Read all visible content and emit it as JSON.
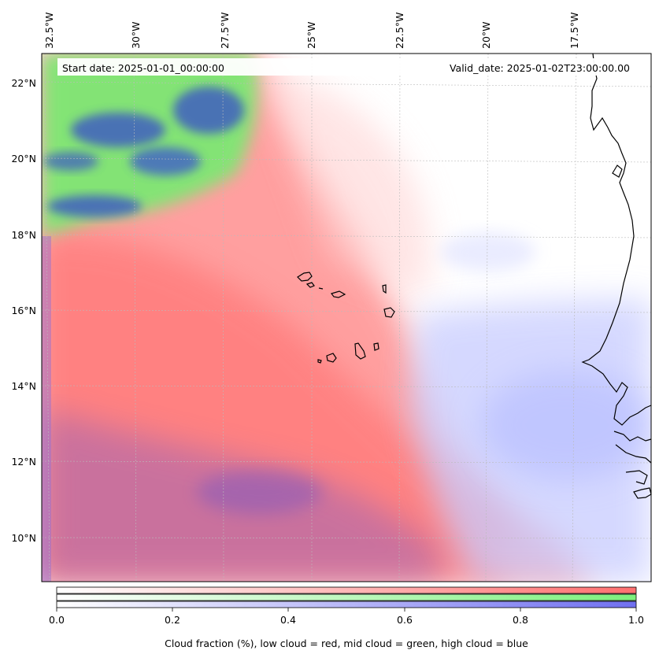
{
  "figure": {
    "start_date_text": "Start date: 2025-01-01_00:00:00",
    "valid_date_text": "Valid_date: 2025-01-02T23:00:00.00"
  },
  "map": {
    "longitude_labels": [
      "32.5°W",
      "30°W",
      "27.5°W",
      "25°W",
      "22.5°W",
      "20°W",
      "17.5°W"
    ],
    "latitude_labels": [
      "22°N",
      "20°N",
      "18°N",
      "16°N",
      "14°N",
      "12°N",
      "10°N"
    ],
    "features": [
      "cape-verde-islands",
      "west-african-coastline"
    ]
  },
  "colorbar": {
    "ticks": [
      "0.0",
      "0.2",
      "0.4",
      "0.6",
      "0.8",
      "1.0"
    ],
    "label": "Cloud fraction (%), low cloud = red, mid cloud = green, high cloud = blue",
    "colors": {
      "low": "#ff7070",
      "mid": "#7cf07c",
      "high": "#7070f0"
    }
  }
}
